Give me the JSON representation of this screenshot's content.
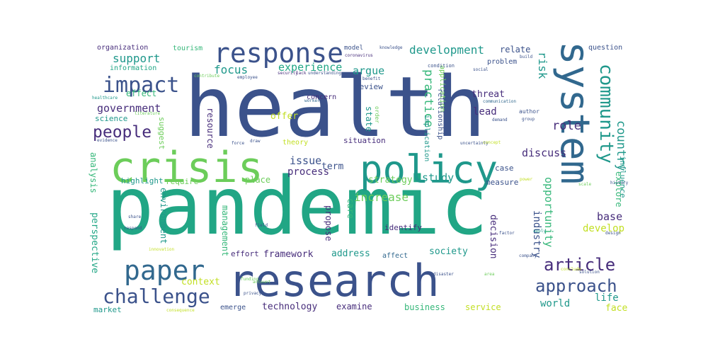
{
  "palette": {
    "yellow": "#c2df23",
    "lime": "#6ccd5a",
    "green": "#35b779",
    "teal": "#21a685",
    "cyan": "#1f988b",
    "blue": "#3b528b",
    "indigo": "#472d7b",
    "purple": "#482173",
    "navy": "#31688e",
    "light": "#9fda3a"
  },
  "words": [
    "health",
    "pandemic",
    "research",
    "crisis",
    "policy",
    "system",
    "response",
    "paper",
    "impact",
    "challenge",
    "article",
    "approach",
    "community",
    "people",
    "government",
    "support",
    "development",
    "focus",
    "experience",
    "argue",
    "practice",
    "risk",
    "country",
    "role",
    "discuss",
    "study",
    "strategy",
    "increase",
    "process",
    "issue",
    "term",
    "state",
    "review",
    "concern",
    "threat",
    "lead",
    "resource",
    "offer",
    "organization",
    "tourism",
    "model",
    "relate",
    "question",
    "information",
    "effect",
    "science",
    "suggest",
    "application",
    "relationship",
    "implication",
    "situation",
    "theory",
    "influence",
    "explore",
    "opportunity",
    "industry",
    "measure",
    "base",
    "develop",
    "decision",
    "care",
    "propose",
    "identify",
    "society",
    "address",
    "affect",
    "framework",
    "effort",
    "emerge",
    "technology",
    "examine",
    "business",
    "service",
    "world",
    "life",
    "face",
    "context",
    "management",
    "place",
    "require",
    "highlight",
    "analysis",
    "perspective",
    "environment",
    "market",
    "case",
    "problem",
    "condition",
    "author",
    "order",
    "knowledge",
    "coronavirus",
    "social",
    "build",
    "healthcare",
    "contribute",
    "employee",
    "security",
    "lack",
    "understanding",
    "benefit",
    "worker",
    "communication",
    "group",
    "demand",
    "uncertainty",
    "concept",
    "force",
    "draw",
    "evidence",
    "literature",
    "power",
    "history",
    "scale",
    "design",
    "field",
    "share",
    "respond",
    "innovation",
    "consequence",
    "privacy",
    "funding",
    "conclude",
    "solution",
    "disaster",
    "account",
    "area",
    "factor",
    "apply",
    "company",
    "response",
    "change",
    "value",
    "need",
    "public"
  ]
}
